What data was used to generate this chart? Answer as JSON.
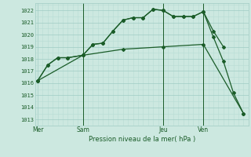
{
  "bg_color": "#cce8e0",
  "grid_color_minor": "#b8ddd4",
  "grid_color_major": "#a0ccc4",
  "line_color": "#1a5c28",
  "title": "Pression niveau de la mer( hPa )",
  "ylim": [
    1012.5,
    1022.6
  ],
  "yticks": [
    1013,
    1014,
    1015,
    1016,
    1017,
    1018,
    1019,
    1020,
    1021,
    1022
  ],
  "day_labels": [
    "Mer",
    "Sam",
    "Jeu",
    "Ven"
  ],
  "day_positions": [
    0,
    9,
    25,
    33
  ],
  "xlim": [
    -0.5,
    42
  ],
  "series1_x": [
    0,
    2,
    4,
    6,
    9,
    11,
    13,
    15,
    17,
    19,
    21,
    23,
    25,
    27,
    29,
    31,
    33,
    35,
    37
  ],
  "series1_y": [
    1016.2,
    1017.5,
    1018.1,
    1018.1,
    1018.3,
    1019.2,
    1019.3,
    1020.3,
    1021.2,
    1021.4,
    1021.4,
    1022.1,
    1022.0,
    1021.5,
    1021.5,
    1021.5,
    1021.9,
    1020.3,
    1019.0
  ],
  "series2_x": [
    0,
    2,
    4,
    6,
    9,
    11,
    13,
    15,
    17,
    19,
    21,
    23,
    25,
    27,
    29,
    31,
    33,
    35,
    37,
    39,
    41
  ],
  "series2_y": [
    1016.2,
    1017.5,
    1018.1,
    1018.1,
    1018.3,
    1019.2,
    1019.3,
    1020.3,
    1021.2,
    1021.4,
    1021.4,
    1022.1,
    1022.0,
    1021.5,
    1021.5,
    1021.5,
    1021.9,
    1019.8,
    1017.8,
    1015.2,
    1013.5
  ],
  "series3_x": [
    0,
    9,
    17,
    25,
    33,
    41
  ],
  "series3_y": [
    1016.2,
    1018.3,
    1018.8,
    1019.0,
    1019.2,
    1013.5
  ],
  "vlines": [
    9,
    25,
    33
  ]
}
